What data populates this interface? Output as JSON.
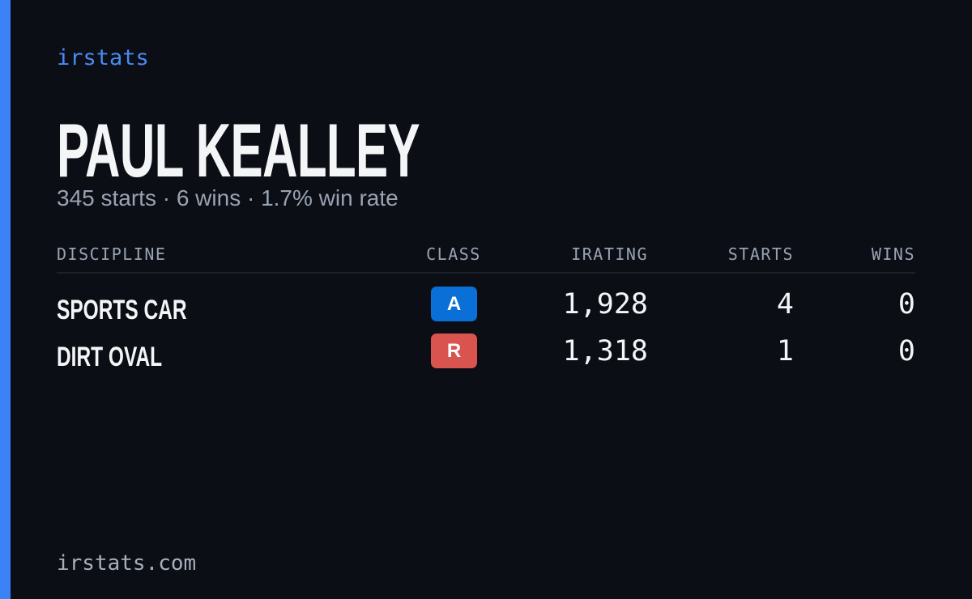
{
  "brand": "irstats",
  "header": {
    "name": "PAUL KEALLEY",
    "subtitle": "345 starts · 6 wins · 1.7% win rate"
  },
  "table": {
    "columns": [
      "DISCIPLINE",
      "CLASS",
      "IRATING",
      "STARTS",
      "WINS"
    ],
    "rows": [
      {
        "discipline": "SPORTS CAR",
        "class": "A",
        "class_color": "#0b6fd8",
        "irating": "1,928",
        "starts": 4,
        "wins": 0
      },
      {
        "discipline": "DIRT OVAL",
        "class": "R",
        "class_color": "#d9534f",
        "irating": "1,318",
        "starts": 1,
        "wins": 0
      }
    ]
  },
  "footer": "irstats.com"
}
